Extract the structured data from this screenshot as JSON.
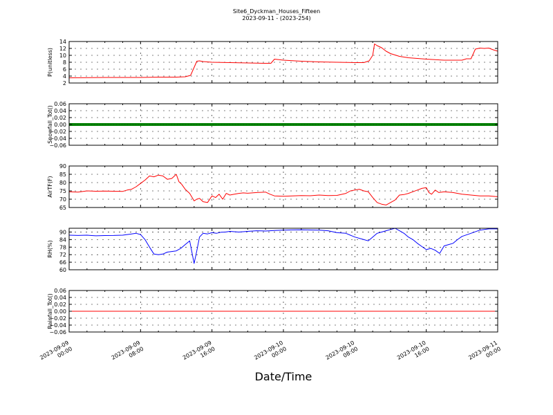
{
  "figure": {
    "title_line1": "Site6_Dyckman_Houses_Fifteen",
    "title_line2": "2023-09-11 - (2023-254)",
    "xlabel": "Date/Time",
    "x_tick_labels": [
      [
        "2023-09-09",
        "00:00"
      ],
      [
        "2023-09-09",
        "08:00"
      ],
      [
        "2023-09-09",
        "16:00"
      ],
      [
        "2023-09-10",
        "00:00"
      ],
      [
        "2023-09-10",
        "08:00"
      ],
      [
        "2023-09-10",
        "16:00"
      ],
      [
        "2023-09-11",
        "00:00"
      ]
    ],
    "x_range_hours": [
      0,
      48
    ]
  },
  "chart_data": [
    {
      "type": "line",
      "ylabel": "P(unitless)",
      "ylim": [
        2,
        14
      ],
      "yticks": [
        2,
        4,
        6,
        8,
        10,
        12,
        14
      ],
      "grid": true,
      "color": "#ff0000",
      "x": [
        0,
        4,
        8,
        10,
        12,
        13,
        13.6,
        14,
        14.3,
        14.6,
        15,
        16,
        18,
        20,
        22,
        22.6,
        23,
        24,
        26,
        28,
        30,
        32,
        33,
        33.6,
        34,
        34.2,
        34.5,
        35,
        35.5,
        36,
        37,
        38,
        40,
        42,
        44,
        44.5,
        45,
        45.5,
        46,
        46.5,
        47,
        47.5,
        48
      ],
      "y": [
        3.5,
        3.6,
        3.6,
        3.7,
        3.7,
        3.8,
        4.2,
        6.5,
        8.3,
        8.4,
        8.2,
        8.0,
        7.9,
        7.8,
        7.7,
        7.7,
        8.9,
        8.6,
        8.3,
        8.1,
        8.0,
        7.9,
        7.9,
        8.4,
        10.0,
        13.3,
        12.8,
        12.2,
        11.2,
        10.5,
        9.7,
        9.3,
        8.9,
        8.6,
        8.6,
        9.0,
        9.0,
        11.8,
        12.1,
        12.0,
        12.1,
        11.6,
        11.2
      ]
    },
    {
      "type": "line",
      "ylabel": "Snowfall_Tot()",
      "ylim": [
        -0.06,
        0.06
      ],
      "yticks": [
        -0.06,
        -0.04,
        -0.02,
        0.0,
        0.02,
        0.04,
        0.06
      ],
      "ytick_labels": [
        "−0.06",
        "−0.04",
        "−0.02",
        "0.00",
        "0.02",
        "0.04",
        "0.06"
      ],
      "grid": true,
      "color": "#008000",
      "x": [
        0,
        48
      ],
      "y": [
        0,
        0
      ]
    },
    {
      "type": "line",
      "ylabel": "AirTF(F)",
      "ylim": [
        65,
        90
      ],
      "yticks": [
        65,
        70,
        75,
        80,
        85,
        90
      ],
      "grid": true,
      "color": "#ff0000",
      "x": [
        0,
        1,
        2,
        3,
        4,
        5,
        6,
        6.5,
        7,
        7.5,
        8,
        8.5,
        9,
        9.5,
        10,
        10.5,
        11,
        11.5,
        12,
        12.3,
        12.6,
        13,
        13.5,
        14,
        14.3,
        14.6,
        15,
        15.5,
        16,
        16.4,
        16.8,
        17.2,
        17.6,
        18,
        18.5,
        19,
        19.5,
        20,
        21,
        22,
        22.5,
        23,
        24,
        25,
        26,
        27,
        28,
        29,
        30,
        31,
        31.5,
        32,
        32.5,
        33,
        33.5,
        34,
        34.5,
        35,
        35.5,
        36,
        36.5,
        37,
        37.5,
        38,
        38.5,
        39,
        39.5,
        40,
        40.3,
        40.6,
        41,
        41.4,
        42,
        43,
        44,
        45,
        46,
        47,
        48
      ],
      "y": [
        74.5,
        74.3,
        75.0,
        74.8,
        74.9,
        74.8,
        74.7,
        75.5,
        76.0,
        77.5,
        79.5,
        81.5,
        84.0,
        83.5,
        84.5,
        84.0,
        82.0,
        82.5,
        85.0,
        80.5,
        79.0,
        76.0,
        73.5,
        69.0,
        70.0,
        70.5,
        68.5,
        68.0,
        72.0,
        71.0,
        73.0,
        70.0,
        73.5,
        72.5,
        73.0,
        73.5,
        73.8,
        73.6,
        74.0,
        74.3,
        73.0,
        72.0,
        71.8,
        72.0,
        72.2,
        72.1,
        72.5,
        72.2,
        72.3,
        73.5,
        75.0,
        75.5,
        76.0,
        75.0,
        74.5,
        71.0,
        68.0,
        67.0,
        66.5,
        68.0,
        69.5,
        72.5,
        72.8,
        73.5,
        74.5,
        75.5,
        76.5,
        77.0,
        74.0,
        73.0,
        75.5,
        74.0,
        74.5,
        74.0,
        73.0,
        72.5,
        72.0,
        72.0,
        71.5
      ]
    },
    {
      "type": "line",
      "ylabel": "RH(%)",
      "ylim": [
        60,
        93
      ],
      "yticks": [
        60,
        66,
        72,
        78,
        84,
        90
      ],
      "grid": true,
      "color": "#0000ff",
      "x": [
        0,
        1,
        2,
        3,
        4,
        5,
        6,
        7,
        7.5,
        8,
        8.5,
        9,
        9.5,
        10,
        10.5,
        11,
        11.5,
        12,
        12.5,
        13,
        13.5,
        14,
        14.3,
        14.6,
        15,
        15.5,
        16,
        16.5,
        17,
        17.5,
        18,
        19,
        20,
        21,
        22,
        23,
        24,
        25,
        26,
        27,
        28,
        29,
        30,
        31,
        32,
        33,
        33.5,
        34,
        34.5,
        35,
        35.5,
        36,
        36.5,
        37,
        37.5,
        38,
        38.5,
        39,
        39.5,
        40,
        40.5,
        41,
        41.5,
        42,
        42.5,
        43,
        43.5,
        44,
        45,
        46,
        47,
        48
      ],
      "y": [
        87.5,
        87.3,
        87.5,
        87.0,
        87.2,
        87.3,
        87.5,
        88.5,
        89.0,
        88.0,
        84.0,
        78.0,
        72.5,
        72.0,
        72.5,
        74.0,
        74.5,
        75.0,
        77.0,
        80.0,
        83.0,
        65.0,
        75.0,
        86.0,
        89.0,
        88.5,
        89.5,
        89.0,
        89.8,
        90.0,
        90.5,
        90.0,
        90.5,
        91.0,
        90.8,
        91.2,
        91.5,
        91.7,
        91.8,
        91.6,
        91.5,
        91.0,
        89.5,
        89.0,
        86.0,
        84.0,
        83.0,
        86.0,
        89.0,
        90.0,
        91.0,
        92.0,
        93.0,
        91.0,
        89.0,
        86.0,
        84.0,
        81.0,
        78.5,
        76.0,
        77.0,
        75.5,
        73.0,
        79.0,
        80.0,
        81.0,
        84.0,
        86.5,
        89.0,
        91.5,
        92.5,
        92.5
      ]
    },
    {
      "type": "line",
      "ylabel": "Rainfall_Tot()",
      "ylim": [
        -0.06,
        0.06
      ],
      "yticks": [
        -0.06,
        -0.04,
        -0.02,
        0.0,
        0.02,
        0.04,
        0.06
      ],
      "ytick_labels": [
        "−0.06",
        "−0.04",
        "−0.02",
        "0.00",
        "0.02",
        "0.04",
        "0.06"
      ],
      "grid": true,
      "color": "#ff0000",
      "x": [
        0,
        48
      ],
      "y": [
        0,
        0
      ]
    }
  ]
}
